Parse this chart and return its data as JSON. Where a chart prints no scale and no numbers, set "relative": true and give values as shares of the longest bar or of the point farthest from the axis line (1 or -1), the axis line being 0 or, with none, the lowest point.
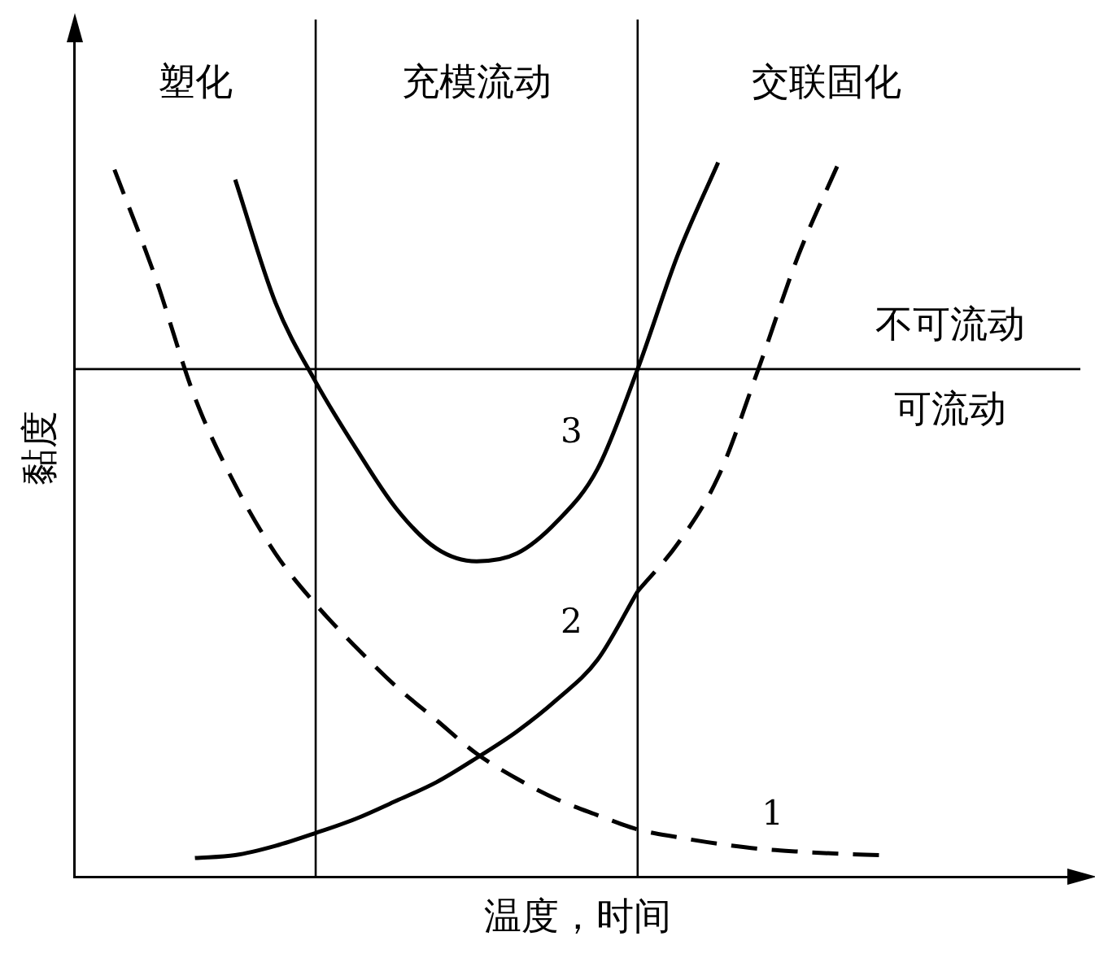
{
  "chart_data": {
    "type": "line",
    "xlabel": "温度，时间",
    "ylabel": "黏度",
    "relative": true,
    "categories": [
      null,
      null,
      null,
      null,
      null,
      null,
      null,
      null,
      null,
      null,
      null,
      null,
      null,
      null,
      null,
      null,
      null,
      null,
      null,
      null,
      null,
      null,
      null,
      null,
      null,
      null
    ],
    "series": [
      {
        "name": "1",
        "color": "#000000",
        "line_style": "dashed",
        "values": [
          null,
          0.99,
          0.842,
          0.671,
          0.549,
          0.453,
          0.382,
          0.322,
          0.267,
          0.22,
          0.173,
          0.138,
          0.109,
          0.087,
          0.067,
          0.056,
          0.047,
          0.04,
          0.036,
          0.033,
          0.031,
          null,
          null,
          null,
          null,
          null
        ]
      },
      {
        "name": "2",
        "color": "#000000",
        "line_style": "solid",
        "values": [
          null,
          null,
          null,
          0.027,
          0.031,
          0.044,
          0.062,
          0.082,
          0.107,
          0.133,
          0.167,
          0.204,
          0.249,
          0.304,
          0.4,
          null,
          null,
          null,
          null,
          null,
          null,
          null,
          null,
          null,
          null,
          null
        ]
      },
      {
        "color": "#000000",
        "line_style": "dashed",
        "values": [
          null,
          null,
          null,
          null,
          null,
          null,
          null,
          null,
          null,
          null,
          null,
          null,
          null,
          null,
          0.4,
          0.467,
          0.56,
          0.711,
          0.871,
          1,
          null,
          null,
          null,
          null,
          null,
          null
        ]
      },
      {
        "name": "3",
        "color": "#000000",
        "line_style": "solid",
        "values": [
          null,
          null,
          null,
          null,
          0.976,
          0.804,
          0.693,
          0.6,
          0.516,
          0.46,
          0.442,
          0.453,
          0.498,
          0.571,
          0.711,
          0.871,
          1,
          null,
          null,
          null,
          null,
          null,
          null,
          null,
          null,
          null
        ]
      }
    ],
    "ref_lines": [
      {
        "axis": "y",
        "value": 0.711
      }
    ],
    "annotations": [
      "塑化",
      "充模流动",
      "交联固化",
      "不可流动",
      "可流动"
    ]
  }
}
